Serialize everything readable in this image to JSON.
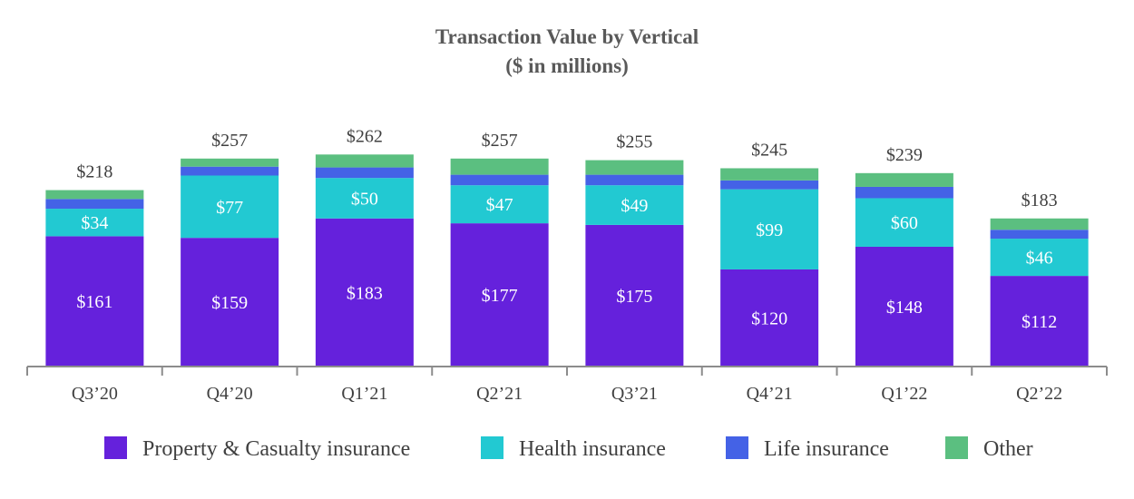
{
  "chart_data": {
    "type": "bar",
    "stacked": true,
    "title": "Transaction Value by Vertical",
    "subtitle": "($ in millions)",
    "categories": [
      "Q3’20",
      "Q4’20",
      "Q1’21",
      "Q2’21",
      "Q3’21",
      "Q4’21",
      "Q1’22",
      "Q2’22"
    ],
    "totals": [
      218,
      257,
      262,
      257,
      255,
      245,
      239,
      183
    ],
    "total_labels": [
      "$218",
      "$257",
      "$262",
      "$257",
      "$255",
      "$245",
      "$239",
      "$183"
    ],
    "series": [
      {
        "name": "Property & Casualty insurance",
        "color": "#6521DC",
        "values": [
          161,
          159,
          183,
          177,
          175,
          120,
          148,
          112
        ],
        "labels": [
          "$161",
          "$159",
          "$183",
          "$177",
          "$175",
          "$120",
          "$148",
          "$112"
        ]
      },
      {
        "name": "Health insurance",
        "color": "#22C9D2",
        "values": [
          34,
          77,
          50,
          47,
          49,
          99,
          60,
          46
        ],
        "labels": [
          "$34",
          "$77",
          "$50",
          "$47",
          "$49",
          "$99",
          "$60",
          "$46"
        ]
      },
      {
        "name": "Life insurance",
        "color": "#4462E6",
        "values": [
          12,
          11,
          13,
          13,
          13,
          11,
          14,
          11
        ],
        "labels": []
      },
      {
        "name": "Other",
        "color": "#5BBF80",
        "values": [
          11,
          10,
          16,
          20,
          18,
          15,
          17,
          14
        ],
        "labels": []
      }
    ],
    "ylim": [
      0,
      280
    ],
    "grid": false,
    "legend_position": "bottom"
  }
}
